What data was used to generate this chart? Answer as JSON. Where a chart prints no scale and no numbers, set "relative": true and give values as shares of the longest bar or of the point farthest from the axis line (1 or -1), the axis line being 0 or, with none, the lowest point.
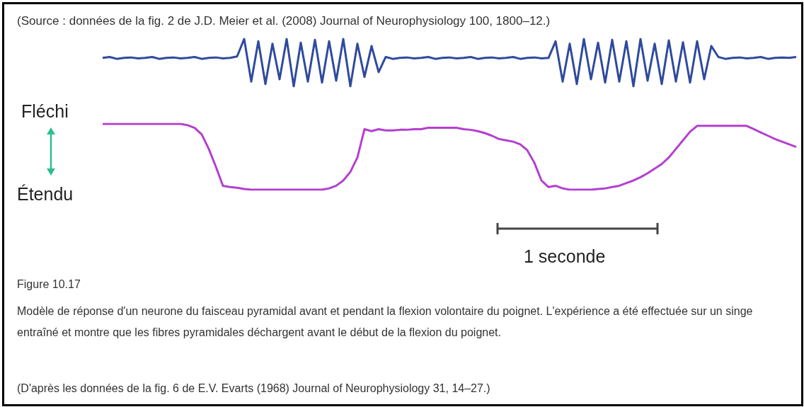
{
  "chart_data": [
    {
      "type": "line",
      "relative": true,
      "marker": "none",
      "annotations": [
        "(Source : données de la fig. 2 de J.D. Meier et al. (2008) Journal of Neurophysiology 100, 1800–12.)"
      ],
      "categories": [
        null,
        null,
        null,
        null,
        null,
        null,
        null,
        null,
        null,
        null,
        null,
        null,
        null,
        null,
        null,
        null,
        null,
        null,
        null,
        null,
        null,
        null,
        null,
        null,
        null,
        null,
        null,
        null,
        null,
        null,
        null,
        null,
        null,
        null,
        null,
        null,
        null,
        null,
        null,
        null,
        null,
        null,
        null,
        null,
        null,
        null,
        null,
        null,
        null,
        null,
        null,
        null,
        null,
        null,
        null,
        null,
        null,
        null,
        null,
        null,
        null,
        null,
        null,
        null,
        null,
        null,
        null,
        null,
        null,
        null,
        null,
        null,
        null,
        null,
        null,
        null,
        null,
        null,
        null,
        null,
        null,
        null,
        null,
        null,
        null,
        null,
        null,
        null,
        null,
        null,
        null,
        null,
        null,
        null,
        null,
        null,
        null,
        null,
        null
      ],
      "series": [
        {
          "color": "#2f4a9e",
          "values": [
            0.6,
            0.62,
            0.58,
            0.6,
            0.61,
            0.59,
            0.6,
            0.62,
            0.58,
            0.6,
            0.61,
            0.59,
            0.6,
            0.62,
            0.58,
            0.6,
            0.61,
            0.59,
            0.6,
            0.63,
            1,
            0.1,
            0.95,
            0.05,
            0.9,
            0.15,
            1,
            0,
            0.92,
            0.1,
            0.98,
            0.08,
            0.95,
            0.12,
            1,
            0,
            0.9,
            0.2,
            0.85,
            0.3,
            0.62,
            0.58,
            0.6,
            0.61,
            0.59,
            0.6,
            0.62,
            0.58,
            0.6,
            0.61,
            0.59,
            0.6,
            0.62,
            0.58,
            0.6,
            0.61,
            0.59,
            0.6,
            0.62,
            0.58,
            0.6,
            0.61,
            0.59,
            0.6,
            0.95,
            0.1,
            0.9,
            0.05,
            1,
            0.15,
            0.92,
            0.08,
            0.98,
            0.1,
            0.95,
            0,
            1,
            0.12,
            0.9,
            0.05,
            0.97,
            0.1,
            0.93,
            0.08,
            0.95,
            0.15,
            0.85,
            0.62,
            0.58,
            0.6,
            0.61,
            0.59,
            0.6,
            0.62,
            0.58,
            0.6,
            0.61,
            0.6,
            0.62
          ]
        }
      ]
    },
    {
      "type": "line",
      "relative": true,
      "marker": "none",
      "title": "Figure 10.17",
      "subtitle": "Modèle de réponse d'un neurone du faisceau pyramidal avant et pendant la flexion volontaire du poignet. L'expérience a été effectuée sur un singe entraîné et montre que les fibres pyramidales déchargent avant le début de la flexion du poignet.",
      "annotations": [
        "Fléchi",
        "Étendu",
        "1 seconde",
        "(D'après les données de la fig. 6 de E.V. Evarts (1968) Journal of Neurophysiology 31, 14–27.)"
      ],
      "categories": [
        null,
        null,
        null,
        null,
        null,
        null,
        null,
        null,
        null,
        null,
        null,
        null,
        null,
        null,
        null,
        null,
        null,
        null,
        null,
        null,
        null,
        null,
        null,
        null,
        null,
        null,
        null,
        null,
        null,
        null,
        null,
        null,
        null,
        null,
        null,
        null,
        null,
        null,
        null,
        null,
        null,
        null,
        null,
        null,
        null,
        null,
        null,
        null,
        null,
        null,
        null,
        null,
        null,
        null,
        null,
        null,
        null,
        null,
        null,
        null,
        null,
        null,
        null,
        null,
        null,
        null,
        null,
        null,
        null,
        null,
        null,
        null,
        null,
        null,
        null,
        null,
        null,
        null,
        null,
        null,
        null,
        null,
        null,
        null,
        null,
        null,
        null,
        null,
        null,
        null,
        null,
        null,
        null,
        null,
        null,
        null,
        null,
        null,
        null
      ],
      "series": [
        {
          "color": "#b43fcf",
          "values": [
            1,
            1,
            1,
            1,
            1,
            1,
            1,
            1,
            1,
            1,
            1,
            1,
            0.98,
            0.94,
            0.84,
            0.62,
            0.35,
            0.06,
            0.04,
            0.03,
            0.01,
            0,
            0,
            0,
            0,
            0,
            0,
            0,
            0,
            0,
            0,
            0,
            0.02,
            0.06,
            0.14,
            0.27,
            0.49,
            0.92,
            0.89,
            0.92,
            0.9,
            0.9,
            0.91,
            0.91,
            0.92,
            0.92,
            0.94,
            0.94,
            0.94,
            0.94,
            0.94,
            0.92,
            0.91,
            0.89,
            0.86,
            0.82,
            0.77,
            0.75,
            0.73,
            0.69,
            0.6,
            0.41,
            0.14,
            0.04,
            0.06,
            0.02,
            0,
            0,
            0,
            0,
            0.01,
            0.02,
            0.04,
            0.06,
            0.1,
            0.14,
            0.19,
            0.25,
            0.32,
            0.39,
            0.49,
            0.62,
            0.75,
            0.88,
            0.97,
            0.97,
            0.97,
            0.97,
            0.97,
            0.97,
            0.97,
            0.97,
            0.92,
            0.87,
            0.82,
            0.77,
            0.73,
            0.69,
            0.65
          ]
        }
      ]
    }
  ]
}
